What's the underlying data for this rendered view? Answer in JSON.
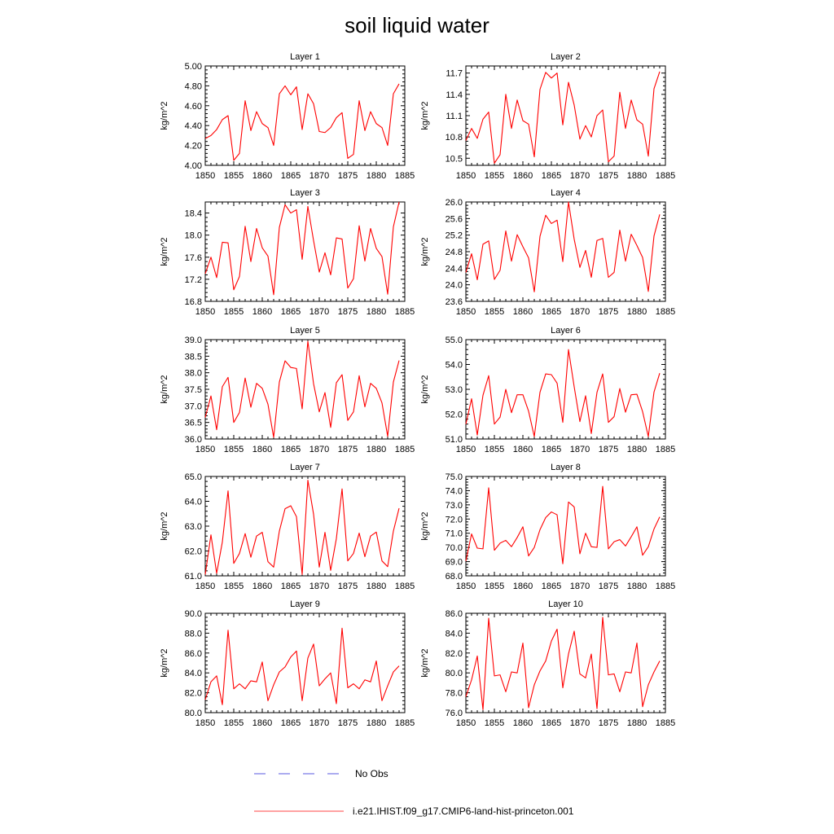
{
  "title": "soil liquid water",
  "legend": [
    {
      "label": "No Obs",
      "color": "#5a5ae0",
      "style": "dashed"
    },
    {
      "label": "i.e21.IHIST.f09_g17.CMIP6-land-hist-princeton.001",
      "color": "#ff4444",
      "style": "solid"
    }
  ],
  "chart_data": [
    {
      "type": "line",
      "title": "Layer 1",
      "ylabel": "kg/m^2",
      "xlim": [
        1850,
        1885
      ],
      "ylim": [
        4.0,
        5.0
      ],
      "xticks": [
        "1850",
        "1855",
        "1860",
        "1865",
        "1870",
        "1875",
        "1880",
        "1885"
      ],
      "yticks": [
        "4.00",
        "4.20",
        "4.40",
        "4.60",
        "4.80",
        "5.00"
      ],
      "x": [
        1850,
        1851,
        1852,
        1853,
        1854,
        1855,
        1856,
        1857,
        1858,
        1859,
        1860,
        1861,
        1862,
        1863,
        1864,
        1865,
        1866,
        1867,
        1868,
        1869,
        1870,
        1871,
        1872,
        1873,
        1874,
        1875,
        1876,
        1877,
        1878,
        1879,
        1880,
        1881,
        1882,
        1883,
        1884
      ],
      "series": [
        {
          "color": "#ff0000",
          "values": [
            4.27,
            4.3,
            4.36,
            4.46,
            4.5,
            4.05,
            4.12,
            4.65,
            4.35,
            4.54,
            4.42,
            4.38,
            4.2,
            4.72,
            4.8,
            4.71,
            4.79,
            4.36,
            4.72,
            4.62,
            4.34,
            4.33,
            4.38,
            4.48,
            4.53,
            4.07,
            4.11,
            4.65,
            4.35,
            4.54,
            4.42,
            4.38,
            4.2,
            4.72,
            4.82
          ]
        }
      ]
    },
    {
      "type": "line",
      "title": "Layer 2",
      "ylabel": "kg/m^2",
      "xlim": [
        1850,
        1885
      ],
      "ylim": [
        10.4,
        11.8
      ],
      "xticks": [
        "1850",
        "1855",
        "1860",
        "1865",
        "1870",
        "1875",
        "1880",
        "1885"
      ],
      "yticks": [
        "10.5",
        "10.8",
        "11.1",
        "11.4",
        "11.7"
      ],
      "x": [
        1850,
        1851,
        1852,
        1853,
        1854,
        1855,
        1856,
        1857,
        1858,
        1859,
        1860,
        1861,
        1862,
        1863,
        1864,
        1865,
        1866,
        1867,
        1868,
        1869,
        1870,
        1871,
        1872,
        1873,
        1874,
        1875,
        1876,
        1877,
        1878,
        1879,
        1880,
        1881,
        1882,
        1883,
        1884
      ],
      "series": [
        {
          "color": "#ff0000",
          "values": [
            10.75,
            10.92,
            10.78,
            11.05,
            11.15,
            10.43,
            10.55,
            11.4,
            10.92,
            11.32,
            11.03,
            10.98,
            10.52,
            11.47,
            11.71,
            11.63,
            11.7,
            10.97,
            11.57,
            11.25,
            10.77,
            10.96,
            10.8,
            11.1,
            11.18,
            10.45,
            10.53,
            11.43,
            10.92,
            11.32,
            11.04,
            10.98,
            10.53,
            11.48,
            11.72
          ]
        }
      ]
    },
    {
      "type": "line",
      "title": "Layer 3",
      "ylabel": "kg/m^2",
      "xlim": [
        1850,
        1885
      ],
      "ylim": [
        16.8,
        18.6
      ],
      "xticks": [
        "1850",
        "1855",
        "1860",
        "1865",
        "1870",
        "1875",
        "1880",
        "1885"
      ],
      "yticks": [
        "16.8",
        "17.2",
        "17.6",
        "18.0",
        "18.4"
      ],
      "x": [
        1850,
        1851,
        1852,
        1853,
        1854,
        1855,
        1856,
        1857,
        1858,
        1859,
        1860,
        1861,
        1862,
        1863,
        1864,
        1865,
        1866,
        1867,
        1868,
        1869,
        1870,
        1871,
        1872,
        1873,
        1874,
        1875,
        1876,
        1877,
        1878,
        1879,
        1880,
        1881,
        1882,
        1883,
        1884
      ],
      "series": [
        {
          "color": "#ff0000",
          "values": [
            17.3,
            17.6,
            17.23,
            17.87,
            17.86,
            17.01,
            17.25,
            18.16,
            17.52,
            18.12,
            17.77,
            17.62,
            16.92,
            18.14,
            18.55,
            18.4,
            18.46,
            17.56,
            18.52,
            17.9,
            17.33,
            17.68,
            17.28,
            17.95,
            17.93,
            17.04,
            17.21,
            18.17,
            17.53,
            18.12,
            17.76,
            17.61,
            16.93,
            18.15,
            18.6
          ]
        }
      ]
    },
    {
      "type": "line",
      "title": "Layer 4",
      "ylabel": "kg/m^2",
      "xlim": [
        1850,
        1885
      ],
      "ylim": [
        23.6,
        26.0
      ],
      "xticks": [
        "1850",
        "1855",
        "1860",
        "1865",
        "1870",
        "1875",
        "1880",
        "1885"
      ],
      "yticks": [
        "23.6",
        "24.0",
        "24.4",
        "24.8",
        "25.2",
        "25.6",
        "26.0"
      ],
      "x": [
        1850,
        1851,
        1852,
        1853,
        1854,
        1855,
        1856,
        1857,
        1858,
        1859,
        1860,
        1861,
        1862,
        1863,
        1864,
        1865,
        1866,
        1867,
        1868,
        1869,
        1870,
        1871,
        1872,
        1873,
        1874,
        1875,
        1876,
        1877,
        1878,
        1879,
        1880,
        1881,
        1882,
        1883,
        1884
      ],
      "series": [
        {
          "color": "#ff0000",
          "values": [
            24.3,
            24.75,
            24.12,
            24.98,
            25.06,
            24.13,
            24.35,
            25.3,
            24.57,
            25.21,
            24.92,
            24.65,
            23.83,
            25.17,
            25.68,
            25.48,
            25.56,
            24.56,
            26.0,
            25.1,
            24.42,
            24.83,
            24.18,
            25.07,
            25.12,
            24.18,
            24.3,
            25.32,
            24.57,
            25.22,
            24.95,
            24.66,
            23.84,
            25.18,
            25.7
          ]
        }
      ]
    },
    {
      "type": "line",
      "title": "Layer 5",
      "ylabel": "kg/m^2",
      "xlim": [
        1850,
        1885
      ],
      "ylim": [
        36.0,
        39.0
      ],
      "xticks": [
        "1850",
        "1855",
        "1860",
        "1865",
        "1870",
        "1875",
        "1880",
        "1885"
      ],
      "yticks": [
        "36.0",
        "36.5",
        "37.0",
        "37.5",
        "38.0",
        "38.5",
        "39.0"
      ],
      "x": [
        1850,
        1851,
        1852,
        1853,
        1854,
        1855,
        1856,
        1857,
        1858,
        1859,
        1860,
        1861,
        1862,
        1863,
        1864,
        1865,
        1866,
        1867,
        1868,
        1869,
        1870,
        1871,
        1872,
        1873,
        1874,
        1875,
        1876,
        1877,
        1878,
        1879,
        1880,
        1881,
        1882,
        1883,
        1884
      ],
      "series": [
        {
          "color": "#ff0000",
          "values": [
            36.65,
            37.3,
            36.28,
            37.58,
            37.86,
            36.5,
            36.8,
            37.84,
            36.96,
            37.68,
            37.53,
            37.05,
            36.05,
            37.72,
            38.36,
            38.16,
            38.13,
            36.91,
            38.95,
            37.67,
            36.82,
            37.4,
            36.35,
            37.7,
            37.94,
            36.56,
            36.82,
            37.91,
            36.97,
            37.68,
            37.53,
            37.09,
            36.08,
            37.72,
            38.37
          ]
        }
      ]
    },
    {
      "type": "line",
      "title": "Layer 6",
      "ylabel": "kg/m^2",
      "xlim": [
        1850,
        1885
      ],
      "ylim": [
        51.0,
        55.0
      ],
      "xticks": [
        "1850",
        "1855",
        "1860",
        "1865",
        "1870",
        "1875",
        "1880",
        "1885"
      ],
      "yticks": [
        "51.0",
        "52.0",
        "53.0",
        "54.0",
        "55.0"
      ],
      "x": [
        1850,
        1851,
        1852,
        1853,
        1854,
        1855,
        1856,
        1857,
        1858,
        1859,
        1860,
        1861,
        1862,
        1863,
        1864,
        1865,
        1866,
        1867,
        1868,
        1869,
        1870,
        1871,
        1872,
        1873,
        1874,
        1875,
        1876,
        1877,
        1878,
        1879,
        1880,
        1881,
        1882,
        1883,
        1884
      ],
      "series": [
        {
          "color": "#ff0000",
          "values": [
            51.6,
            52.62,
            51.16,
            52.76,
            53.55,
            51.6,
            51.88,
            53.0,
            52.06,
            52.78,
            52.78,
            52.12,
            51.1,
            52.88,
            53.62,
            53.59,
            53.25,
            51.67,
            54.6,
            53.1,
            51.7,
            52.74,
            51.22,
            52.88,
            53.62,
            51.67,
            51.9,
            53.03,
            52.08,
            52.78,
            52.8,
            52.1,
            51.1,
            52.89,
            53.65
          ]
        }
      ]
    },
    {
      "type": "line",
      "title": "Layer 7",
      "ylabel": "kg/m^2",
      "xlim": [
        1850,
        1885
      ],
      "ylim": [
        61.0,
        65.0
      ],
      "xticks": [
        "1850",
        "1855",
        "1860",
        "1865",
        "1870",
        "1875",
        "1880",
        "1885"
      ],
      "yticks": [
        "61.0",
        "62.0",
        "63.0",
        "64.0",
        "65.0"
      ],
      "x": [
        1850,
        1851,
        1852,
        1853,
        1854,
        1855,
        1856,
        1857,
        1858,
        1859,
        1860,
        1861,
        1862,
        1863,
        1864,
        1865,
        1866,
        1867,
        1868,
        1869,
        1870,
        1871,
        1872,
        1873,
        1874,
        1875,
        1876,
        1877,
        1878,
        1879,
        1880,
        1881,
        1882,
        1883,
        1884
      ],
      "series": [
        {
          "color": "#ff0000",
          "values": [
            61.05,
            62.65,
            61.1,
            62.36,
            64.42,
            61.5,
            61.9,
            62.7,
            61.75,
            62.6,
            62.75,
            61.57,
            61.35,
            62.8,
            63.7,
            63.82,
            63.38,
            61.05,
            64.85,
            63.48,
            61.35,
            62.75,
            61.22,
            62.5,
            64.5,
            61.6,
            61.9,
            62.72,
            61.77,
            62.6,
            62.76,
            61.6,
            61.37,
            62.8,
            63.72
          ]
        }
      ]
    },
    {
      "type": "line",
      "title": "Layer 8",
      "ylabel": "kg/m^2",
      "xlim": [
        1850,
        1885
      ],
      "ylim": [
        68.0,
        75.0
      ],
      "xticks": [
        "1850",
        "1855",
        "1860",
        "1865",
        "1870",
        "1875",
        "1880",
        "1885"
      ],
      "yticks": [
        "68.0",
        "69.0",
        "70.0",
        "71.0",
        "72.0",
        "73.0",
        "74.0",
        "75.0"
      ],
      "x": [
        1850,
        1851,
        1852,
        1853,
        1854,
        1855,
        1856,
        1857,
        1858,
        1859,
        1860,
        1861,
        1862,
        1863,
        1864,
        1865,
        1866,
        1867,
        1868,
        1869,
        1870,
        1871,
        1872,
        1873,
        1874,
        1875,
        1876,
        1877,
        1878,
        1879,
        1880,
        1881,
        1882,
        1883,
        1884
      ],
      "series": [
        {
          "color": "#ff0000",
          "values": [
            69.05,
            70.95,
            69.95,
            69.9,
            74.2,
            69.8,
            70.3,
            70.5,
            70.05,
            70.7,
            71.45,
            69.4,
            70.0,
            71.25,
            72.1,
            72.5,
            72.3,
            68.85,
            73.2,
            72.85,
            69.55,
            71.0,
            70.05,
            70.0,
            74.3,
            69.9,
            70.4,
            70.55,
            70.1,
            70.75,
            71.45,
            69.45,
            70.05,
            71.3,
            72.15
          ]
        }
      ]
    },
    {
      "type": "line",
      "title": "Layer 9",
      "ylabel": "kg/m^2",
      "xlim": [
        1850,
        1885
      ],
      "ylim": [
        80.0,
        90.0
      ],
      "xticks": [
        "1850",
        "1855",
        "1860",
        "1865",
        "1870",
        "1875",
        "1880",
        "1885"
      ],
      "yticks": [
        "80.0",
        "82.0",
        "84.0",
        "86.0",
        "88.0",
        "90.0"
      ],
      "x": [
        1850,
        1851,
        1852,
        1853,
        1854,
        1855,
        1856,
        1857,
        1858,
        1859,
        1860,
        1861,
        1862,
        1863,
        1864,
        1865,
        1866,
        1867,
        1868,
        1869,
        1870,
        1871,
        1872,
        1873,
        1874,
        1875,
        1876,
        1877,
        1878,
        1879,
        1880,
        1881,
        1882,
        1883,
        1884
      ],
      "series": [
        {
          "color": "#ff0000",
          "values": [
            81.3,
            83.1,
            83.7,
            80.8,
            88.3,
            82.4,
            82.9,
            82.4,
            83.2,
            83.1,
            85.1,
            81.2,
            82.8,
            84.1,
            84.6,
            85.6,
            86.2,
            81.2,
            85.5,
            86.9,
            82.7,
            83.4,
            84.0,
            80.9,
            88.5,
            82.5,
            82.9,
            82.4,
            83.3,
            83.1,
            85.2,
            81.2,
            82.7,
            84.1,
            84.7
          ]
        }
      ]
    },
    {
      "type": "line",
      "title": "Layer 10",
      "ylabel": "kg/m^2",
      "xlim": [
        1850,
        1885
      ],
      "ylim": [
        76.0,
        86.0
      ],
      "xticks": [
        "1850",
        "1855",
        "1860",
        "1865",
        "1870",
        "1875",
        "1880",
        "1885"
      ],
      "yticks": [
        "76.0",
        "78.0",
        "80.0",
        "82.0",
        "84.0",
        "86.0"
      ],
      "x": [
        1850,
        1851,
        1852,
        1853,
        1854,
        1855,
        1856,
        1857,
        1858,
        1859,
        1860,
        1861,
        1862,
        1863,
        1864,
        1865,
        1866,
        1867,
        1868,
        1869,
        1870,
        1871,
        1872,
        1873,
        1874,
        1875,
        1876,
        1877,
        1878,
        1879,
        1880,
        1881,
        1882,
        1883,
        1884
      ],
      "series": [
        {
          "color": "#ff0000",
          "values": [
            77.6,
            79.3,
            81.7,
            76.3,
            85.5,
            79.7,
            79.8,
            78.1,
            80.1,
            80.0,
            83.0,
            76.5,
            78.8,
            80.2,
            81.2,
            83.2,
            84.4,
            78.5,
            81.9,
            84.2,
            79.9,
            79.5,
            81.9,
            76.4,
            85.6,
            79.8,
            79.9,
            78.1,
            80.1,
            80.0,
            83.0,
            76.6,
            78.8,
            80.1,
            81.2
          ]
        }
      ]
    }
  ]
}
